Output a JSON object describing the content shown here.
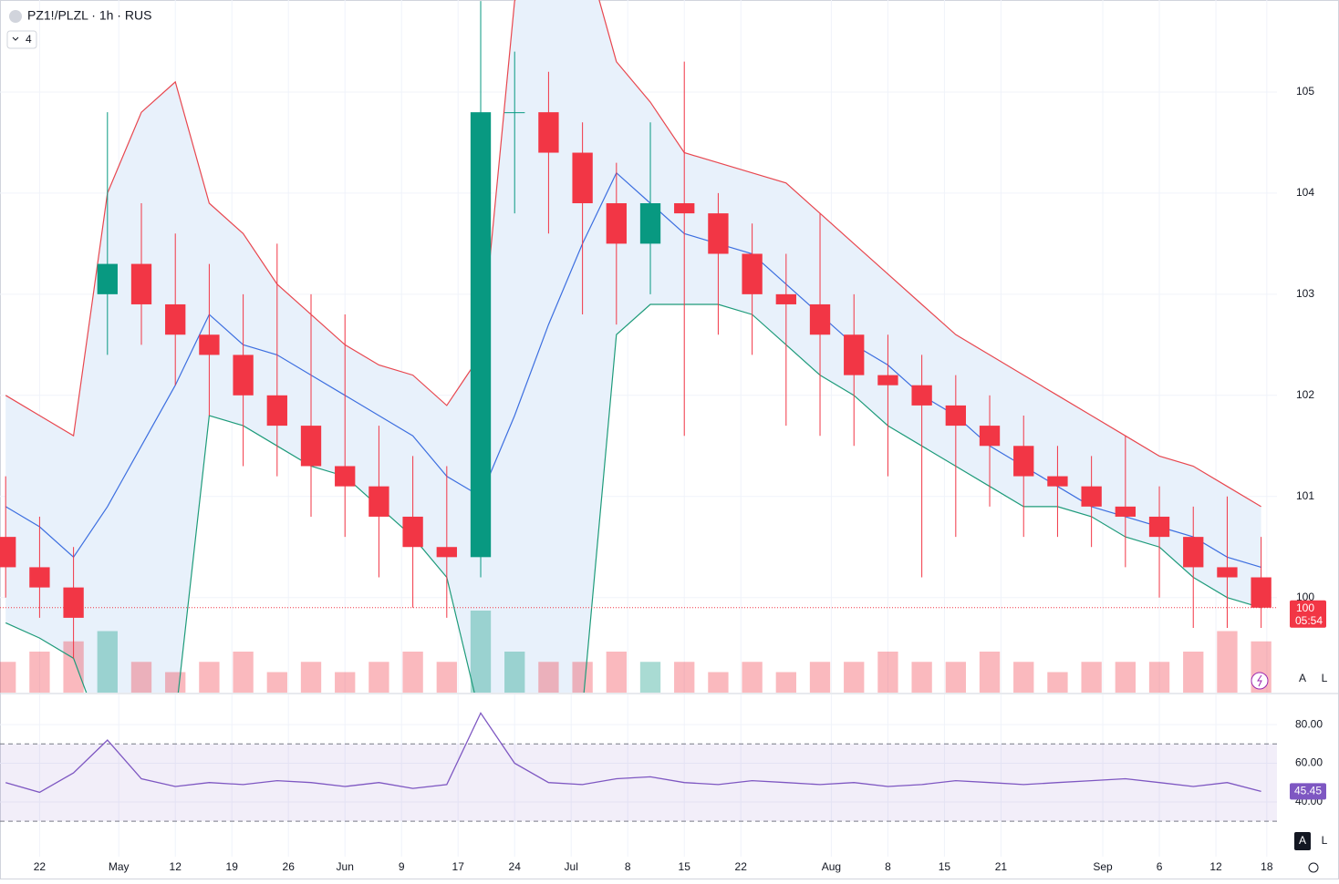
{
  "chart_data": {
    "type": "candlestick",
    "title": "PZ1!/PLZL · 1h · RUS",
    "indicator_count": "4",
    "up_color": "#089981",
    "down_color": "#f23645",
    "grid": true,
    "xlim": [
      -0.5,
      112.4
    ],
    "xticks": [
      {
        "value": 3,
        "label": "22"
      },
      {
        "value": 10,
        "label": "May"
      },
      {
        "value": 15,
        "label": "12"
      },
      {
        "value": 20,
        "label": "19"
      },
      {
        "value": 25,
        "label": "26"
      },
      {
        "value": 30,
        "label": "Jun"
      },
      {
        "value": 35,
        "label": "9"
      },
      {
        "value": 40,
        "label": "17"
      },
      {
        "value": 45,
        "label": "24"
      },
      {
        "value": 50,
        "label": "Jul"
      },
      {
        "value": 55,
        "label": "8"
      },
      {
        "value": 60,
        "label": "15"
      },
      {
        "value": 65,
        "label": "22"
      },
      {
        "value": 73,
        "label": "Aug"
      },
      {
        "value": 78,
        "label": "8"
      },
      {
        "value": 83,
        "label": "15"
      },
      {
        "value": 88,
        "label": "21"
      },
      {
        "value": 97,
        "label": "Sep"
      },
      {
        "value": 102,
        "label": "6"
      },
      {
        "value": 107,
        "label": "12"
      },
      {
        "value": 111.5,
        "label": "18"
      }
    ],
    "ylim": [
      99.06,
      105.91
    ],
    "yticks": [
      100,
      101,
      102,
      103,
      104,
      105
    ],
    "x": [
      0,
      3,
      6,
      9,
      12,
      15,
      18,
      21,
      24,
      27,
      30,
      33,
      36,
      39,
      42,
      45,
      48,
      51,
      54,
      57,
      60,
      63,
      66,
      69,
      72,
      75,
      78,
      81,
      84,
      87,
      90,
      93,
      96,
      99,
      102,
      105,
      108,
      111
    ],
    "open": [
      100.6,
      100.3,
      100.1,
      103.0,
      103.3,
      102.9,
      102.6,
      102.4,
      102.0,
      101.7,
      101.3,
      101.1,
      100.8,
      100.5,
      100.4,
      104.8,
      104.8,
      104.4,
      103.9,
      103.5,
      103.9,
      103.8,
      103.4,
      103.0,
      102.9,
      102.6,
      102.2,
      102.1,
      101.9,
      101.7,
      101.5,
      101.2,
      101.1,
      100.9,
      100.8,
      100.6,
      100.3,
      100.2
    ],
    "high": [
      101.2,
      100.8,
      100.5,
      104.8,
      103.9,
      103.6,
      103.3,
      103.0,
      103.5,
      103.0,
      102.8,
      101.7,
      101.4,
      101.3,
      105.9,
      105.4,
      105.2,
      104.7,
      104.3,
      104.7,
      105.3,
      104.0,
      103.7,
      103.4,
      103.8,
      103.0,
      102.6,
      102.4,
      102.2,
      102.0,
      101.8,
      101.5,
      101.4,
      101.6,
      101.1,
      100.9,
      101.0,
      100.6
    ],
    "low": [
      100.0,
      99.8,
      99.4,
      102.4,
      102.5,
      102.1,
      101.8,
      101.3,
      101.2,
      100.8,
      100.6,
      100.2,
      99.9,
      99.8,
      100.2,
      103.8,
      103.6,
      102.8,
      102.7,
      103.0,
      101.6,
      102.6,
      102.4,
      101.7,
      101.6,
      101.5,
      101.2,
      100.2,
      100.6,
      100.9,
      100.6,
      100.6,
      100.5,
      100.3,
      100.0,
      99.7,
      99.7,
      99.7
    ],
    "close": [
      100.3,
      100.1,
      99.8,
      103.3,
      102.9,
      102.6,
      102.4,
      102.0,
      101.7,
      101.3,
      101.1,
      100.8,
      100.5,
      100.4,
      104.8,
      104.8,
      104.4,
      103.9,
      103.5,
      103.9,
      103.8,
      103.4,
      103.0,
      102.9,
      102.6,
      102.2,
      102.1,
      101.9,
      101.7,
      101.5,
      101.2,
      101.1,
      100.9,
      100.8,
      100.6,
      100.3,
      100.2,
      99.9
    ],
    "volume": [
      3,
      4,
      5,
      6,
      3,
      2,
      3,
      4,
      2,
      3,
      2,
      3,
      4,
      3,
      8,
      4,
      3,
      3,
      4,
      3,
      3,
      2,
      3,
      2,
      3,
      3,
      4,
      3,
      3,
      4,
      3,
      2,
      3,
      3,
      3,
      4,
      6,
      5
    ],
    "bands": {
      "fill": "#e8f1fb",
      "upper": {
        "color": "#e8474f",
        "values": [
          102.0,
          101.8,
          101.6,
          104.0,
          104.8,
          105.1,
          103.9,
          103.6,
          103.1,
          102.8,
          102.5,
          102.3,
          102.2,
          101.9,
          102.4,
          105.9,
          106.5,
          106.5,
          105.3,
          104.9,
          104.4,
          104.3,
          104.2,
          104.1,
          103.8,
          103.5,
          103.2,
          102.9,
          102.6,
          102.4,
          102.2,
          102.0,
          101.8,
          101.6,
          101.4,
          101.3,
          101.1,
          100.9
        ]
      },
      "middle": {
        "color": "#3d6fe0",
        "values": [
          100.9,
          100.7,
          100.4,
          100.9,
          101.5,
          102.1,
          102.8,
          102.5,
          102.4,
          102.2,
          102.0,
          101.8,
          101.6,
          101.2,
          101.0,
          101.8,
          102.7,
          103.5,
          104.2,
          103.9,
          103.6,
          103.5,
          103.4,
          103.1,
          102.8,
          102.5,
          102.3,
          102.0,
          101.8,
          101.5,
          101.3,
          101.1,
          100.9,
          100.8,
          100.7,
          100.6,
          100.4,
          100.3
        ]
      },
      "lower": {
        "color": "#1e9b7a",
        "values": [
          99.75,
          99.6,
          99.4,
          98.5,
          98.3,
          98.8,
          101.8,
          101.7,
          101.5,
          101.3,
          101.2,
          100.9,
          100.6,
          100.2,
          98.8,
          98.3,
          98.3,
          98.9,
          102.6,
          102.9,
          102.9,
          102.9,
          102.8,
          102.5,
          102.2,
          102.0,
          101.7,
          101.5,
          101.3,
          101.1,
          100.9,
          100.9,
          100.8,
          100.6,
          100.5,
          100.2,
          100.0,
          99.9
        ]
      }
    },
    "last_price": {
      "value": 99.9,
      "label": "100"
    },
    "countdown": "05:54",
    "rsi": {
      "color": "#7e57c2",
      "ylim": [
        11.7,
        95.6
      ],
      "yticks": [
        {
          "value": 80,
          "label": "80.00"
        },
        {
          "value": 60,
          "label": "60.00"
        },
        {
          "value": 40,
          "label": "40.00"
        }
      ],
      "bands": [
        70,
        30
      ],
      "values": [
        50,
        45,
        55,
        72,
        52,
        48,
        50,
        49,
        51,
        50,
        48,
        50,
        47,
        49,
        86,
        60,
        50,
        49,
        52,
        53,
        50,
        49,
        51,
        50,
        49,
        50,
        48,
        49,
        51,
        50,
        49,
        50,
        51,
        52,
        50,
        48,
        50,
        45.45
      ],
      "current": 45.45
    },
    "buttons": {
      "auto": "A",
      "log": "L"
    }
  }
}
